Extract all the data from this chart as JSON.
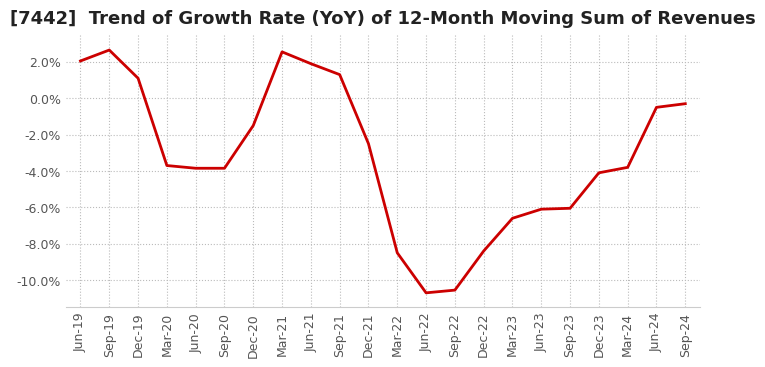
{
  "title": "[7442]  Trend of Growth Rate (YoY) of 12-Month Moving Sum of Revenues",
  "x_labels": [
    "Jun-19",
    "Sep-19",
    "Dec-19",
    "Mar-20",
    "Jun-20",
    "Sep-20",
    "Dec-20",
    "Mar-21",
    "Jun-21",
    "Sep-21",
    "Dec-21",
    "Mar-22",
    "Jun-22",
    "Sep-22",
    "Dec-22",
    "Mar-23",
    "Jun-23",
    "Sep-23",
    "Dec-23",
    "Mar-24",
    "Jun-24",
    "Sep-24"
  ],
  "y_values": [
    2.05,
    2.65,
    1.1,
    -3.7,
    -3.85,
    -3.85,
    -1.5,
    2.55,
    1.9,
    1.3,
    -2.5,
    -8.5,
    -10.7,
    -10.55,
    -8.4,
    -6.6,
    -6.1,
    -6.05,
    -4.1,
    -3.8,
    -0.5,
    -0.3
  ],
  "line_color": "#cc0000",
  "line_width": 2.0,
  "ylim": [
    -11.5,
    3.5
  ],
  "yticks": [
    2.0,
    0.0,
    -2.0,
    -4.0,
    -6.0,
    -8.0,
    -10.0
  ],
  "grid_color": "#bbbbbb",
  "background_color": "#ffffff",
  "title_fontsize": 13,
  "tick_fontsize": 9
}
